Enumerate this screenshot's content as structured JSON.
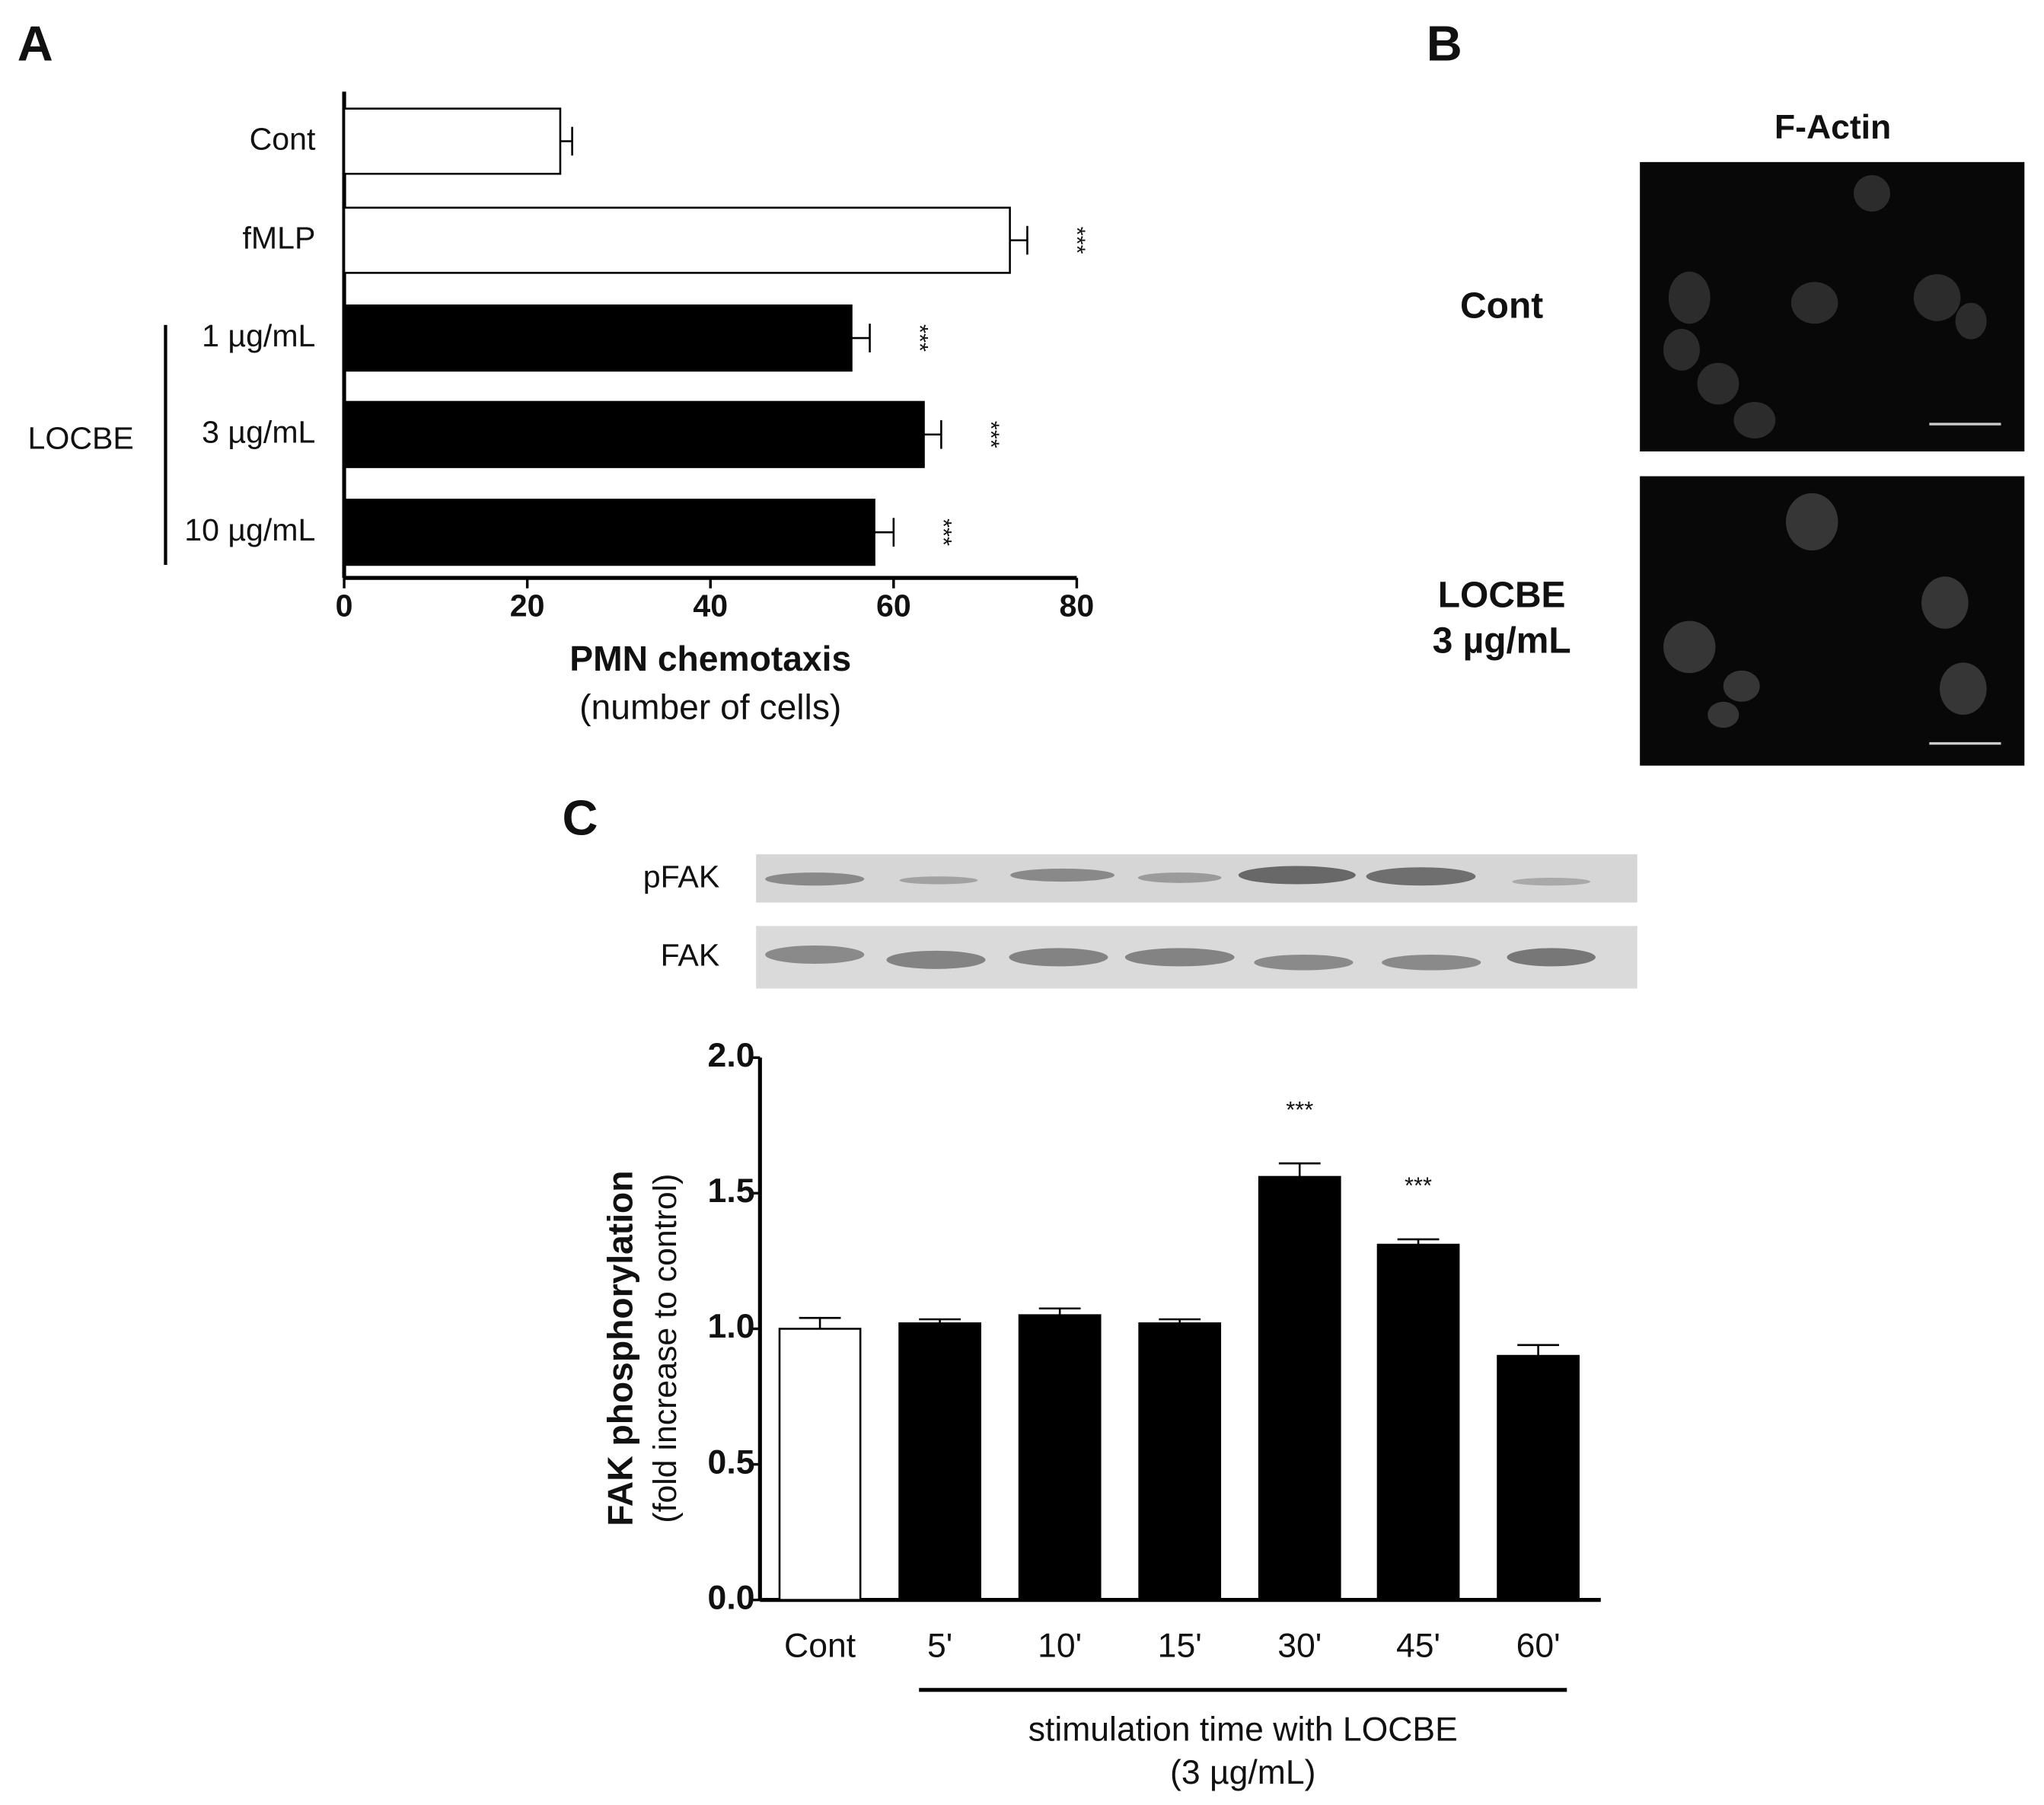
{
  "panel_labels": [
    "A",
    "B",
    "C"
  ],
  "chart_data": [
    {
      "type": "bar",
      "orientation": "horizontal",
      "categories": [
        "Cont",
        "fMLP",
        "1 µg/mL",
        "3 µg/mL",
        "10 µg/mL"
      ],
      "values": [
        23.6,
        72.7,
        55.4,
        63.3,
        57.9
      ],
      "errors": [
        1.3,
        1.9,
        2.0,
        1.9,
        2.1
      ],
      "colors": [
        "#ffffff",
        "#ffffff",
        "#000000",
        "#000000",
        "#000000"
      ],
      "annotations": [
        null,
        "***",
        "***",
        "***",
        "***"
      ],
      "group": {
        "label": "LOCBE",
        "from": 2,
        "to": 4
      },
      "xlabel": "PMN chemotaxis",
      "xlabel_sub": "(number of cells)",
      "xlim": [
        0,
        80
      ],
      "xticks": [
        0,
        20,
        40,
        60,
        80
      ]
    },
    {
      "type": "bar",
      "orientation": "vertical",
      "categories": [
        "Cont",
        "5'",
        "10'",
        "15'",
        "30'",
        "45'",
        "60'"
      ],
      "values": [
        1.0,
        1.02,
        1.05,
        1.02,
        1.56,
        1.31,
        0.9
      ],
      "errors": [
        0.04,
        0.015,
        0.025,
        0.015,
        0.05,
        0.02,
        0.04
      ],
      "colors": [
        "#ffffff",
        "#000000",
        "#000000",
        "#000000",
        "#000000",
        "#000000",
        "#000000"
      ],
      "annotations": [
        null,
        null,
        null,
        null,
        "***",
        "***",
        null
      ],
      "group": {
        "label": "stimulation time with LOCBE",
        "label_sub": "(3 µg/mL)",
        "from": 1,
        "to": 6
      },
      "ylabel": "FAK phosphorylation",
      "ylabel_sub": "(fold increase to control)",
      "ylim": [
        0,
        2
      ],
      "yticks": [
        {
          "value": 0,
          "label": "0.0"
        },
        {
          "value": 0.5,
          "label": "0.5"
        },
        {
          "value": 1,
          "label": "1.0"
        },
        {
          "value": 1.5,
          "label": "1.5"
        },
        {
          "value": 2,
          "label": "2.0"
        }
      ]
    }
  ],
  "microscopy": {
    "title": "F-Actin",
    "rows": [
      [
        "Cont"
      ],
      [
        "LOCBE",
        "3 µg/mL"
      ]
    ]
  },
  "blot": {
    "rows": [
      "pFAK",
      "FAK"
    ]
  }
}
